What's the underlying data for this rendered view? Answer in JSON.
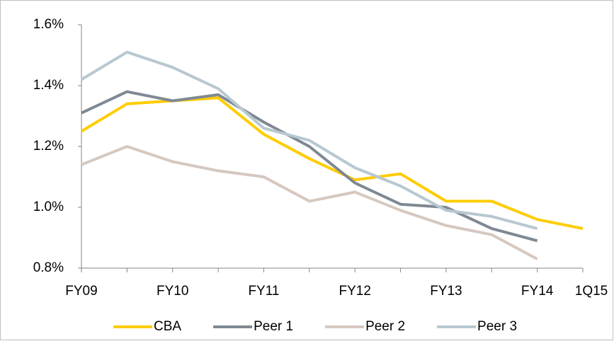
{
  "chart_data": {
    "type": "line",
    "categories": [
      "FY09",
      null,
      "FY10",
      null,
      "FY11",
      null,
      "FY12",
      null,
      "FY13",
      null,
      "FY14",
      "1Q15"
    ],
    "ylim": [
      0.8,
      1.6
    ],
    "yticks": [
      {
        "value": 0.8,
        "label": "0.8%"
      },
      {
        "value": 1.0,
        "label": "1.0%"
      },
      {
        "value": 1.2,
        "label": "1.2%"
      },
      {
        "value": 1.4,
        "label": "1.4%"
      },
      {
        "value": 1.6,
        "label": "1.6%"
      }
    ],
    "grid": false,
    "legend": "bottom",
    "series": [
      {
        "name": "CBA",
        "color": "#ffcc00",
        "values": [
          1.25,
          1.34,
          1.35,
          1.36,
          1.24,
          1.16,
          1.09,
          1.11,
          1.02,
          1.02,
          0.96,
          0.93
        ]
      },
      {
        "name": "Peer 1",
        "color": "#7f8993",
        "values": [
          1.31,
          1.38,
          1.35,
          1.37,
          1.28,
          1.2,
          1.08,
          1.01,
          1.0,
          0.93,
          0.89,
          null
        ]
      },
      {
        "name": "Peer 2",
        "color": "#d5c8c0",
        "values": [
          1.14,
          1.2,
          1.15,
          1.12,
          1.1,
          1.02,
          1.05,
          0.99,
          0.94,
          0.91,
          0.83,
          null
        ]
      },
      {
        "name": "Peer 3",
        "color": "#b8c8d0",
        "values": [
          1.42,
          1.51,
          1.46,
          1.39,
          1.26,
          1.22,
          1.13,
          1.07,
          0.99,
          0.97,
          0.93,
          null
        ]
      }
    ]
  }
}
